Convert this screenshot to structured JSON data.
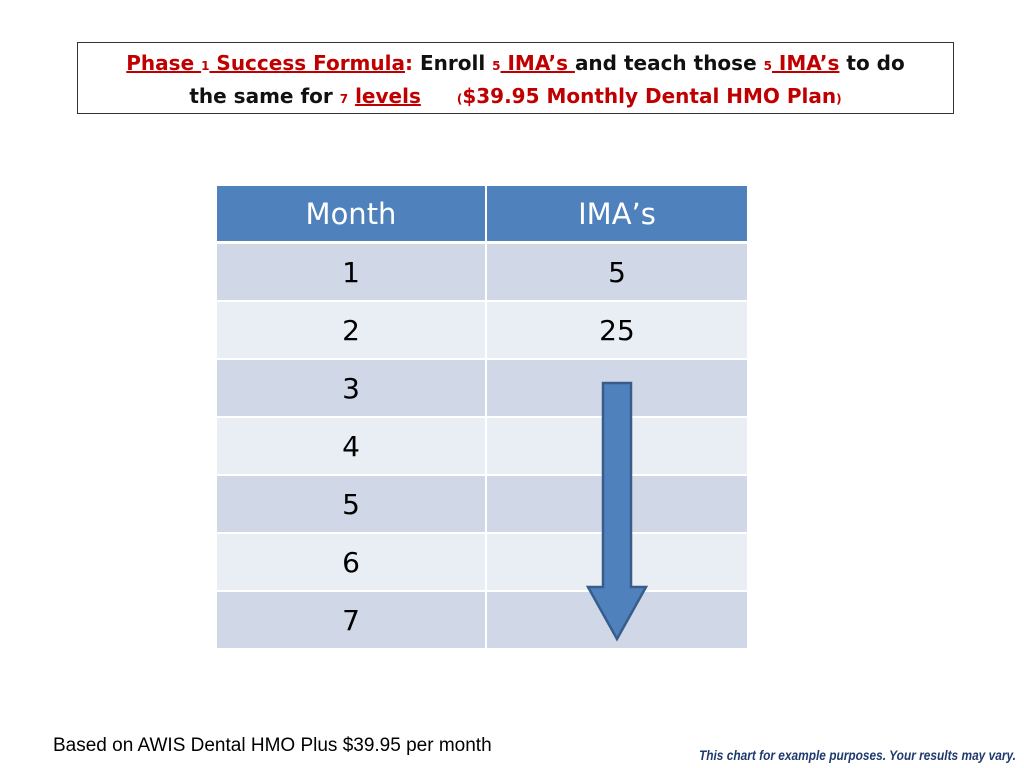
{
  "title": {
    "phase_word": "Phase ",
    "phase_num": "1",
    "success_formula": " Success Formula",
    "colon": ": ",
    "enroll": "Enroll ",
    "num_5a": "5",
    "imas_a": " IMA’s ",
    "teach": "and teach those ",
    "num_5b": "5",
    "imas_b": " IMA’s",
    "to_do": " to do",
    "same_for": "the same for ",
    "num_7": "7",
    "levels": "levels",
    "paren_open": "(",
    "plan": "$39.95 Monthly Dental HMO Plan",
    "paren_close": ")"
  },
  "table": {
    "headers": [
      "Month",
      "IMA’s"
    ],
    "rows": [
      [
        "1",
        "5"
      ],
      [
        "2",
        "25"
      ],
      [
        "3",
        ""
      ],
      [
        "4",
        ""
      ],
      [
        "5",
        ""
      ],
      [
        "6",
        ""
      ],
      [
        "7",
        ""
      ]
    ]
  },
  "arrow": {
    "direction": "down",
    "color": "#4f81bd",
    "border": "#385d8a"
  },
  "footnote_left": "Based on AWIS Dental HMO Plus $39.95 per month",
  "footnote_right": "This chart for example purposes. Your results may vary.",
  "colors": {
    "title_red": "#c00000",
    "header_blue": "#4f81bd",
    "row_odd": "#d0d8e8",
    "row_even": "#e9edf4",
    "footnote_right": "#1f3a6e"
  }
}
